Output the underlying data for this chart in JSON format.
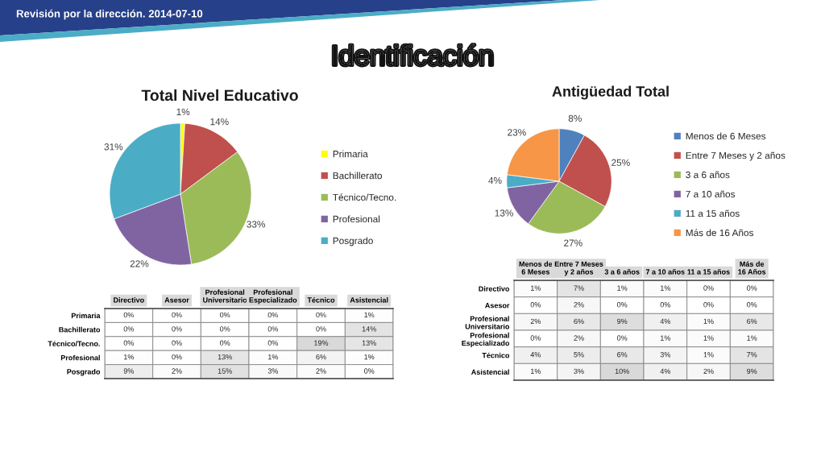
{
  "chart_data": [
    {
      "type": "pie",
      "title": "Total Nivel Educativo",
      "categories": [
        "Primaria",
        "Bachillerato",
        "Técnico/Tecno.",
        "Profesional",
        "Posgrado"
      ],
      "values": [
        1,
        14,
        33,
        22,
        31
      ],
      "value_labels": [
        "1%",
        "14%",
        "33%",
        "22%",
        "31%"
      ],
      "colors": [
        "#ffff00",
        "#c0504d",
        "#9bbb59",
        "#8064a2",
        "#4bacc6"
      ],
      "legend": "right",
      "annotations": [
        "Revisión por la dirección. 2014-07-10",
        "Identificación"
      ]
    },
    {
      "type": "pie",
      "title": "Antigüedad Total",
      "categories": [
        "Menos de 6 Meses",
        "Entre 7 Meses y 2 años",
        "3 a 6 años",
        "7 a 10 años",
        "11 a 15 años",
        "Más de 16 Años"
      ],
      "values": [
        8,
        25,
        27,
        13,
        4,
        23
      ],
      "value_labels": [
        "8%",
        "25%",
        "27%",
        "13%",
        "4%",
        "23%"
      ],
      "colors": [
        "#4f81bd",
        "#c0504d",
        "#9bbb59",
        "#8064a2",
        "#4bacc6",
        "#f79646"
      ],
      "legend": "right"
    },
    {
      "type": "heatmap",
      "categories": [
        "Directivo",
        "Asesor",
        "Profesional Universitario",
        "Profesional Especializado",
        "Técnico",
        "Asistencial"
      ],
      "y_categories": [
        "Primaria",
        "Bachillerato",
        "Técnico/Tecno.",
        "Profesional",
        "Posgrado"
      ],
      "cells": [
        [
          0,
          0,
          0,
          0,
          0,
          1
        ],
        [
          0,
          0,
          0,
          0,
          0,
          14
        ],
        [
          0,
          0,
          0,
          0,
          19,
          13
        ],
        [
          1,
          0,
          13,
          1,
          6,
          1
        ],
        [
          9,
          2,
          15,
          3,
          2,
          0
        ]
      ],
      "cell_labels": [
        [
          "0%",
          "0%",
          "0%",
          "0%",
          "0%",
          "1%"
        ],
        [
          "0%",
          "0%",
          "0%",
          "0%",
          "0%",
          "14%"
        ],
        [
          "0%",
          "0%",
          "0%",
          "0%",
          "19%",
          "13%"
        ],
        [
          "1%",
          "0%",
          "13%",
          "1%",
          "6%",
          "1%"
        ],
        [
          "9%",
          "2%",
          "15%",
          "3%",
          "2%",
          "0%"
        ]
      ]
    },
    {
      "type": "heatmap",
      "categories": [
        "Menos de 6 Meses",
        "Entre 7 Meses y 2 años",
        "3 a 6 años",
        "7 a 10 años",
        "11 a 15 años",
        "Más de 16 Años"
      ],
      "y_categories": [
        "Directivo",
        "Asesor",
        "Profesional Universitario",
        "Profesional Especializado",
        "Técnico",
        "Asistencial"
      ],
      "cells": [
        [
          1,
          7,
          1,
          1,
          0,
          0
        ],
        [
          0,
          2,
          0,
          0,
          0,
          0
        ],
        [
          2,
          6,
          9,
          4,
          1,
          6
        ],
        [
          0,
          2,
          0,
          1,
          1,
          1
        ],
        [
          4,
          5,
          6,
          3,
          1,
          7
        ],
        [
          1,
          3,
          10,
          4,
          2,
          9
        ]
      ],
      "cell_labels": [
        [
          "1%",
          "7%",
          "1%",
          "1%",
          "0%",
          "0%"
        ],
        [
          "0%",
          "2%",
          "0%",
          "0%",
          "0%",
          "0%"
        ],
        [
          "2%",
          "6%",
          "9%",
          "4%",
          "1%",
          "6%"
        ],
        [
          "0%",
          "2%",
          "0%",
          "1%",
          "1%",
          "1%"
        ],
        [
          "4%",
          "5%",
          "6%",
          "3%",
          "1%",
          "7%"
        ],
        [
          "1%",
          "3%",
          "10%",
          "4%",
          "2%",
          "9%"
        ]
      ]
    }
  ]
}
